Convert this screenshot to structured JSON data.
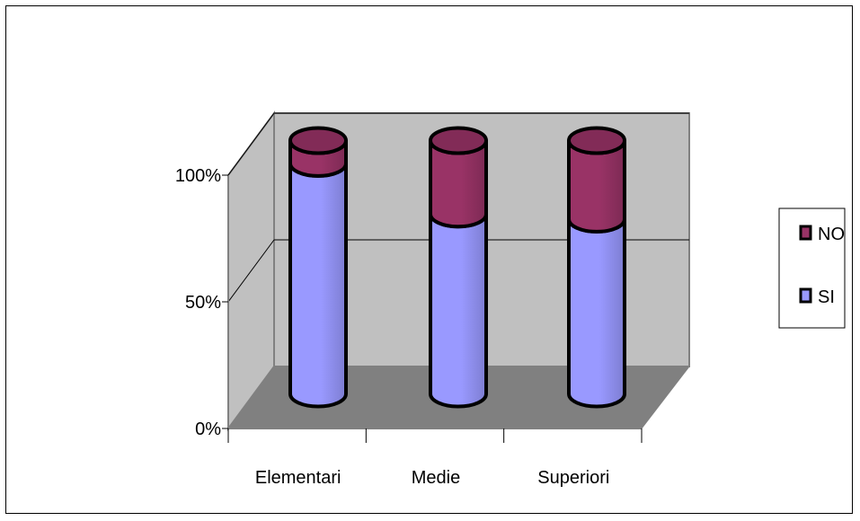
{
  "chart_data": {
    "type": "bar",
    "stacked": true,
    "percent_stacked": true,
    "three_d": true,
    "bar_shape": "cylinder",
    "categories": [
      "Elementari",
      "Medie",
      "Superiori"
    ],
    "series": [
      {
        "name": "SI",
        "values": [
          91,
          71,
          69
        ],
        "color": "#9999ff"
      },
      {
        "name": "NO",
        "values": [
          9,
          29,
          31
        ],
        "color": "#993366"
      }
    ],
    "y_ticks": [
      "0%",
      "50%",
      "100%"
    ],
    "ylim": [
      0,
      100
    ],
    "grid": true,
    "legend_position": "right",
    "legend_entries": [
      "NO",
      "SI"
    ],
    "colors": {
      "wall": "#c0c0c0",
      "floor": "#808080"
    }
  }
}
